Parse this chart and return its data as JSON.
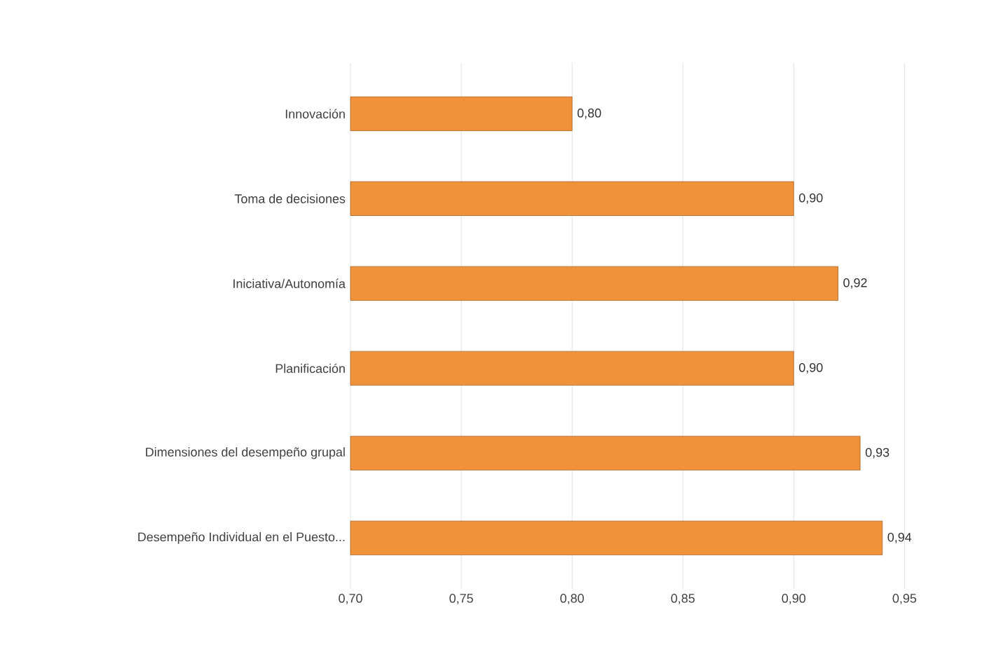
{
  "chart_data": {
    "type": "bar",
    "orientation": "horizontal",
    "categories": [
      "Innovación",
      "Toma de decisiones",
      "Iniciativa/Autonomía",
      "Planificación",
      "Dimensiones  del desempeño  grupal",
      "Desempeño  Individual  en el Puesto..."
    ],
    "values": [
      0.8,
      0.9,
      0.92,
      0.9,
      0.93,
      0.94
    ],
    "value_labels": [
      "0,80",
      "0,90",
      "0,92",
      "0,90",
      "0,93",
      "0,94"
    ],
    "color": "#f0923a",
    "xlim": [
      0.7,
      0.95
    ],
    "xticks": [
      {
        "value": 0.7,
        "label": "0,70"
      },
      {
        "value": 0.75,
        "label": "0,75"
      },
      {
        "value": 0.8,
        "label": "0,80"
      },
      {
        "value": 0.85,
        "label": "0,85"
      },
      {
        "value": 0.9,
        "label": "0,90"
      },
      {
        "value": 0.95,
        "label": "0,95"
      }
    ],
    "grid": "x"
  }
}
